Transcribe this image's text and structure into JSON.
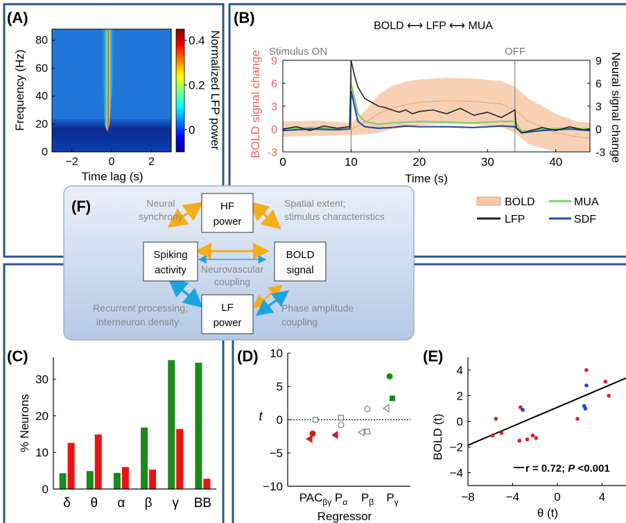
{
  "panels": {
    "a": {
      "letter": "(A)",
      "ylabel": "Frequency (Hz)",
      "xlabel": "Time lag (s)",
      "cbar_label": "Normalized LFP power"
    },
    "b": {
      "letter": "(B)",
      "title": "BOLD ⟷ LFP ⟷ MUA",
      "stim_on": "Stimulus ON",
      "stim_off": "OFF",
      "ylabel_left": "BOLD signal change",
      "ylabel_right": "Neural signal change",
      "xlabel": "Time (s)"
    },
    "c": {
      "letter": "(C)",
      "ylabel": "% Neurons"
    },
    "d": {
      "letter": "(D)",
      "ylabel": "t",
      "xlabel": "Regressor"
    },
    "e": {
      "letter": "(E)",
      "ylabel": "BOLD (t)",
      "xlabel": "θ (t)",
      "stat": "r = 0.72; P <0.001"
    },
    "f": {
      "letter": "(F)",
      "boxes": {
        "hf": [
          "HF",
          "power"
        ],
        "spiking": [
          "Spiking",
          "activity"
        ],
        "bold": [
          "BOLD",
          "signal"
        ],
        "lf": [
          "LF",
          "power"
        ]
      },
      "labels": {
        "neural_sync": [
          "Neural",
          "synchrony"
        ],
        "spatial": [
          "Spatial extent;",
          "stimulus characteristics"
        ],
        "neurovascular": [
          "Neurovascular",
          "coupling"
        ],
        "recurrent": [
          "Recurrent processing;",
          "interneuron density"
        ],
        "pac": [
          "Phase amplitude",
          "coupling"
        ]
      }
    }
  },
  "colors": {
    "panel_border": "#2f5486",
    "green": "#1a8a1a",
    "red": "#ee1111",
    "bold_fill": "#f7c9a8",
    "lfp": "#222222",
    "mua": "#7ccf6a",
    "sdf": "#1f4fa8",
    "arrow_orange": "#f5ad1a",
    "arrow_blue": "#1da4e0",
    "bold_label": "#ef6060"
  },
  "chart_data": [
    {
      "id": "A",
      "type": "heatmap",
      "xlabel": "Time lag (s)",
      "ylabel": "Frequency (Hz)",
      "xlim": [
        -3,
        3
      ],
      "ylim": [
        0,
        88
      ],
      "x_ticks": [
        "-2",
        "0",
        "2"
      ],
      "y_ticks": [
        "0",
        "20",
        "40",
        "60",
        "80"
      ],
      "colorbar": {
        "label": "Normalized LFP power",
        "range": [
          -0.1,
          0.45
        ],
        "ticks": [
          "0",
          "0.2",
          "0.4"
        ]
      }
    },
    {
      "id": "B",
      "type": "line",
      "title": "BOLD ⟷ LFP ⟷ MUA",
      "xlabel": "Time (s)",
      "ylabel_left": "BOLD signal change",
      "ylabel_right": "Neural signal change",
      "xlim": [
        0,
        45
      ],
      "ylim": [
        -3,
        9
      ],
      "x_ticks": [
        "0",
        "10",
        "20",
        "30",
        "40"
      ],
      "y_ticks_left": [
        "-3",
        "0",
        "3",
        "6",
        "9"
      ],
      "y_ticks_right": [
        "-3",
        "0",
        "3",
        "6",
        "9"
      ],
      "events": [
        {
          "label": "Stimulus ON",
          "x": 10
        },
        {
          "label": "OFF",
          "x": 34
        }
      ],
      "legend": [
        "BOLD",
        "MUA",
        "LFP",
        "SDF"
      ],
      "series": [
        {
          "name": "LFP",
          "x": [
            0,
            2,
            4,
            6,
            8,
            9.8,
            10,
            10.5,
            11,
            12,
            13,
            14,
            15,
            16,
            17,
            18,
            19,
            20,
            22,
            24,
            26,
            28,
            30,
            32,
            34,
            34.2,
            35,
            36,
            38,
            40,
            42,
            44,
            45
          ],
          "y": [
            0,
            0.3,
            -0.2,
            0.4,
            0.1,
            0.3,
            9,
            7,
            5.5,
            4,
            3.5,
            3,
            2.8,
            2.5,
            2.2,
            2.5,
            2,
            2.3,
            2.5,
            2,
            2.7,
            1.8,
            2.2,
            1.5,
            2.5,
            0.2,
            -0.5,
            -0.3,
            0.2,
            -0.2,
            0.3,
            -0.1,
            0
          ]
        },
        {
          "name": "MUA",
          "x": [
            0,
            4,
            8,
            9.8,
            10,
            10.5,
            11,
            12,
            14,
            16,
            18,
            20,
            24,
            28,
            32,
            34,
            35,
            38,
            42,
            45
          ],
          "y": [
            0,
            0.2,
            0.1,
            0.3,
            6,
            4,
            2,
            1,
            0.6,
            0.8,
            0.9,
            1,
            0.9,
            0.8,
            1,
            1,
            -0.3,
            0,
            0.1,
            0
          ]
        },
        {
          "name": "SDF",
          "x": [
            0,
            4,
            8,
            9.8,
            10,
            10.5,
            11,
            12,
            14,
            16,
            18,
            20,
            24,
            28,
            32,
            34,
            35,
            38,
            42,
            45
          ],
          "y": [
            -0.2,
            0,
            -0.1,
            0,
            5,
            3,
            1,
            0.3,
            0.1,
            0.2,
            0.4,
            0.3,
            0.3,
            0.2,
            0.4,
            0.3,
            -0.5,
            -0.2,
            0,
            -0.2
          ]
        },
        {
          "name": "BOLD",
          "x": [
            0,
            5,
            10,
            12,
            14,
            16,
            18,
            20,
            24,
            28,
            32,
            34,
            36,
            40,
            43,
            45
          ],
          "y": [
            0,
            0.1,
            0,
            0.8,
            2,
            2.8,
            3.2,
            3.5,
            3.7,
            3.6,
            3.3,
            2.5,
            1,
            -0.5,
            -1,
            -1.2
          ],
          "band_half_width": [
            1,
            1,
            0.8,
            1.5,
            2.5,
            2.8,
            3,
            3,
            3,
            3,
            3,
            3,
            3,
            2.5,
            2,
            2
          ]
        }
      ]
    },
    {
      "id": "C",
      "type": "bar",
      "ylabel": "% Neurons",
      "ylim": [
        0,
        36
      ],
      "y_ticks": [
        "0",
        "10",
        "20",
        "30"
      ],
      "categories": [
        "δ",
        "θ",
        "α",
        "β",
        "γ",
        "BB"
      ],
      "series": [
        {
          "color": "#1a8a1a",
          "values": [
            4.3,
            4.9,
            4.4,
            16.8,
            35.2,
            34.5
          ]
        },
        {
          "color": "#ee1111",
          "values": [
            12.6,
            14.9,
            6.0,
            5.3,
            16.4,
            2.8
          ]
        }
      ]
    },
    {
      "id": "D",
      "type": "scatter",
      "xlabel": "Regressor",
      "ylabel": "t",
      "ylim": [
        -10,
        10
      ],
      "y_ticks": [
        "-10",
        "-5",
        "0",
        "5",
        "10"
      ],
      "categories": [
        "PACβγ",
        "Pα",
        "Pβ",
        "Pγ"
      ],
      "markers": [
        {
          "cat": 0,
          "shape": "square",
          "fill": "none",
          "t": 0
        },
        {
          "cat": 0,
          "shape": "circle",
          "fill": "#d81c1c",
          "t": -2.1
        },
        {
          "cat": 0,
          "shape": "triangle-left",
          "fill": "#d81c1c",
          "t": -2.9
        },
        {
          "cat": 1,
          "shape": "square",
          "fill": "none",
          "t": 0.3
        },
        {
          "cat": 1,
          "shape": "circle",
          "fill": "none",
          "t": -0.8
        },
        {
          "cat": 1,
          "shape": "triangle-left",
          "fill": "#d81c1c",
          "t": -2.3
        },
        {
          "cat": 2,
          "shape": "circle",
          "fill": "none",
          "t": 1.6
        },
        {
          "cat": 2,
          "shape": "square",
          "fill": "none",
          "t": -1.8
        },
        {
          "cat": 2,
          "shape": "triangle-left",
          "fill": "none",
          "t": -1.9
        },
        {
          "cat": 3,
          "shape": "circle",
          "fill": "#1a8a1a",
          "t": 6.5
        },
        {
          "cat": 3,
          "shape": "square",
          "fill": "#1a8a1a",
          "t": 3.2
        },
        {
          "cat": 3,
          "shape": "triangle-left",
          "fill": "none",
          "t": 1.7
        }
      ]
    },
    {
      "id": "E",
      "type": "scatter",
      "xlabel": "θ (t)",
      "ylabel": "BOLD (t)",
      "xlim": [
        -8,
        8
      ],
      "ylim": [
        -5,
        5
      ],
      "x_ticks": [
        "-8",
        "-4",
        "0",
        "4"
      ],
      "y_ticks": [
        "-4",
        "-2",
        "0",
        "2",
        "4"
      ],
      "points_red": [
        [
          -5.8,
          -1.1
        ],
        [
          -5.5,
          0.2
        ],
        [
          -5,
          -0.9
        ],
        [
          -3.3,
          1.1
        ],
        [
          -3.4,
          -1.5
        ],
        [
          -2.7,
          -1.4
        ],
        [
          -2.2,
          -1.1
        ],
        [
          -1.9,
          -1.3
        ],
        [
          1.8,
          0.2
        ],
        [
          2.6,
          4
        ],
        [
          4.3,
          3.1
        ],
        [
          4.6,
          2
        ]
      ],
      "points_blue": [
        [
          -3.1,
          0.9
        ],
        [
          2.6,
          2.8
        ],
        [
          2.4,
          1.2
        ],
        [
          2.5,
          1
        ]
      ],
      "fit": {
        "slope": 0.37,
        "intercept": 1.1
      }
    }
  ]
}
